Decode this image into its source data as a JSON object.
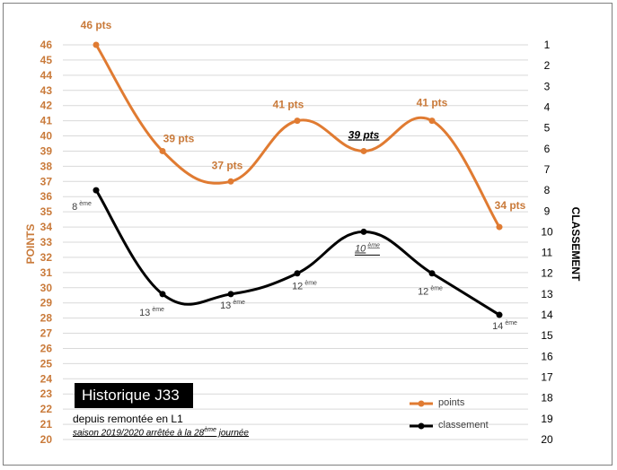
{
  "chart_data": {
    "type": "line",
    "title": "Historique J33",
    "subtitle": "depuis remontée en L1",
    "season_note_main": "saison 2019/2020 arrêtée à la 28",
    "season_note_sup": "ème",
    "season_note_end": " journée",
    "left_axis": {
      "label": "POINTS",
      "min": 20,
      "max": 46,
      "ticks": [
        "20",
        "21",
        "22",
        "23",
        "24",
        "25",
        "26",
        "27",
        "28",
        "29",
        "30",
        "31",
        "32",
        "33",
        "34",
        "35",
        "36",
        "37",
        "38",
        "39",
        "40",
        "41",
        "42",
        "43",
        "44",
        "45",
        "46"
      ]
    },
    "right_axis": {
      "label": "CLASSEMENT",
      "min": 1,
      "max": 20,
      "ticks": [
        "1",
        "2",
        "3",
        "4",
        "5",
        "6",
        "7",
        "8",
        "9",
        "10",
        "11",
        "12",
        "13",
        "14",
        "15",
        "16",
        "17",
        "18",
        "19",
        "20"
      ]
    },
    "series": [
      {
        "name": "points",
        "color": "#e07b32",
        "axis": "left",
        "values": [
          46,
          39,
          37,
          41,
          39,
          41,
          34
        ],
        "labels": [
          "46 pts",
          "39 pts",
          "37 pts",
          "41 pts",
          "39 pts",
          "41 pts",
          "34 pts"
        ],
        "highlight_index": 4
      },
      {
        "name": "classement",
        "color": "#000000",
        "axis": "right",
        "values": [
          8,
          13,
          13,
          12,
          10,
          12,
          14
        ],
        "labels": [
          "8",
          "13",
          "13",
          "12",
          "10",
          "12",
          "14"
        ],
        "label_suffix": "ème",
        "highlight_index": 4
      }
    ],
    "grid": true,
    "legend": "bottom-right"
  }
}
